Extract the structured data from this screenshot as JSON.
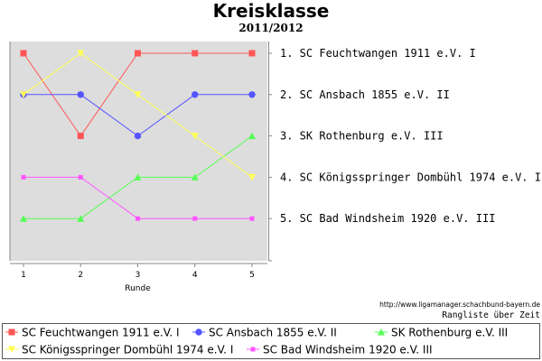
{
  "title": "Kreisklasse",
  "subtitle": "2011/2012",
  "source": "http://www.ligamanager.schachbund-bayern.de",
  "caption": "Rangliste über Zeit",
  "chart_data": {
    "type": "line",
    "title": "Kreisklasse",
    "subtitle": "2011/2012",
    "xlabel": "Runde",
    "ylabel": "",
    "x": [
      1,
      2,
      3,
      4,
      5
    ],
    "xlim": [
      0.8,
      5.2
    ],
    "ylim": [
      0.5,
      6
    ],
    "y_inverted": true,
    "grid": false,
    "legend_position": "bottom",
    "rank_labels": [
      "1. SC Feuchtwangen 1911 e.V. I",
      "2. SC Ansbach 1855 e.V. II",
      "3. SK Rothenburg e.V. III",
      "4. SC Königsspringer Dombühl 1974 e.V. I",
      "5. SC Bad Windsheim 1920 e.V. III"
    ],
    "series": [
      {
        "name": "SC Feuchtwangen 1911 e.V. I",
        "values": [
          1,
          3,
          1,
          1,
          1
        ],
        "color": "#ff5555",
        "marker": "square"
      },
      {
        "name": "SC Ansbach 1855 e.V. II",
        "values": [
          2,
          2,
          3,
          2,
          2
        ],
        "color": "#5555ff",
        "marker": "circle"
      },
      {
        "name": "SK Rothenburg e.V. III",
        "values": [
          5,
          5,
          4,
          4,
          3
        ],
        "color": "#55ff55",
        "marker": "triangle-up"
      },
      {
        "name": "SC Königsspringer Dombühl 1974 e.V. I",
        "values": [
          2,
          1,
          2,
          3,
          4
        ],
        "color": "#ffff55",
        "marker": "triangle-down"
      },
      {
        "name": "SC Bad Windsheim 1920 e.V. III",
        "values": [
          4,
          4,
          5,
          5,
          5
        ],
        "color": "#ff55ff",
        "marker": "small-square"
      }
    ]
  }
}
